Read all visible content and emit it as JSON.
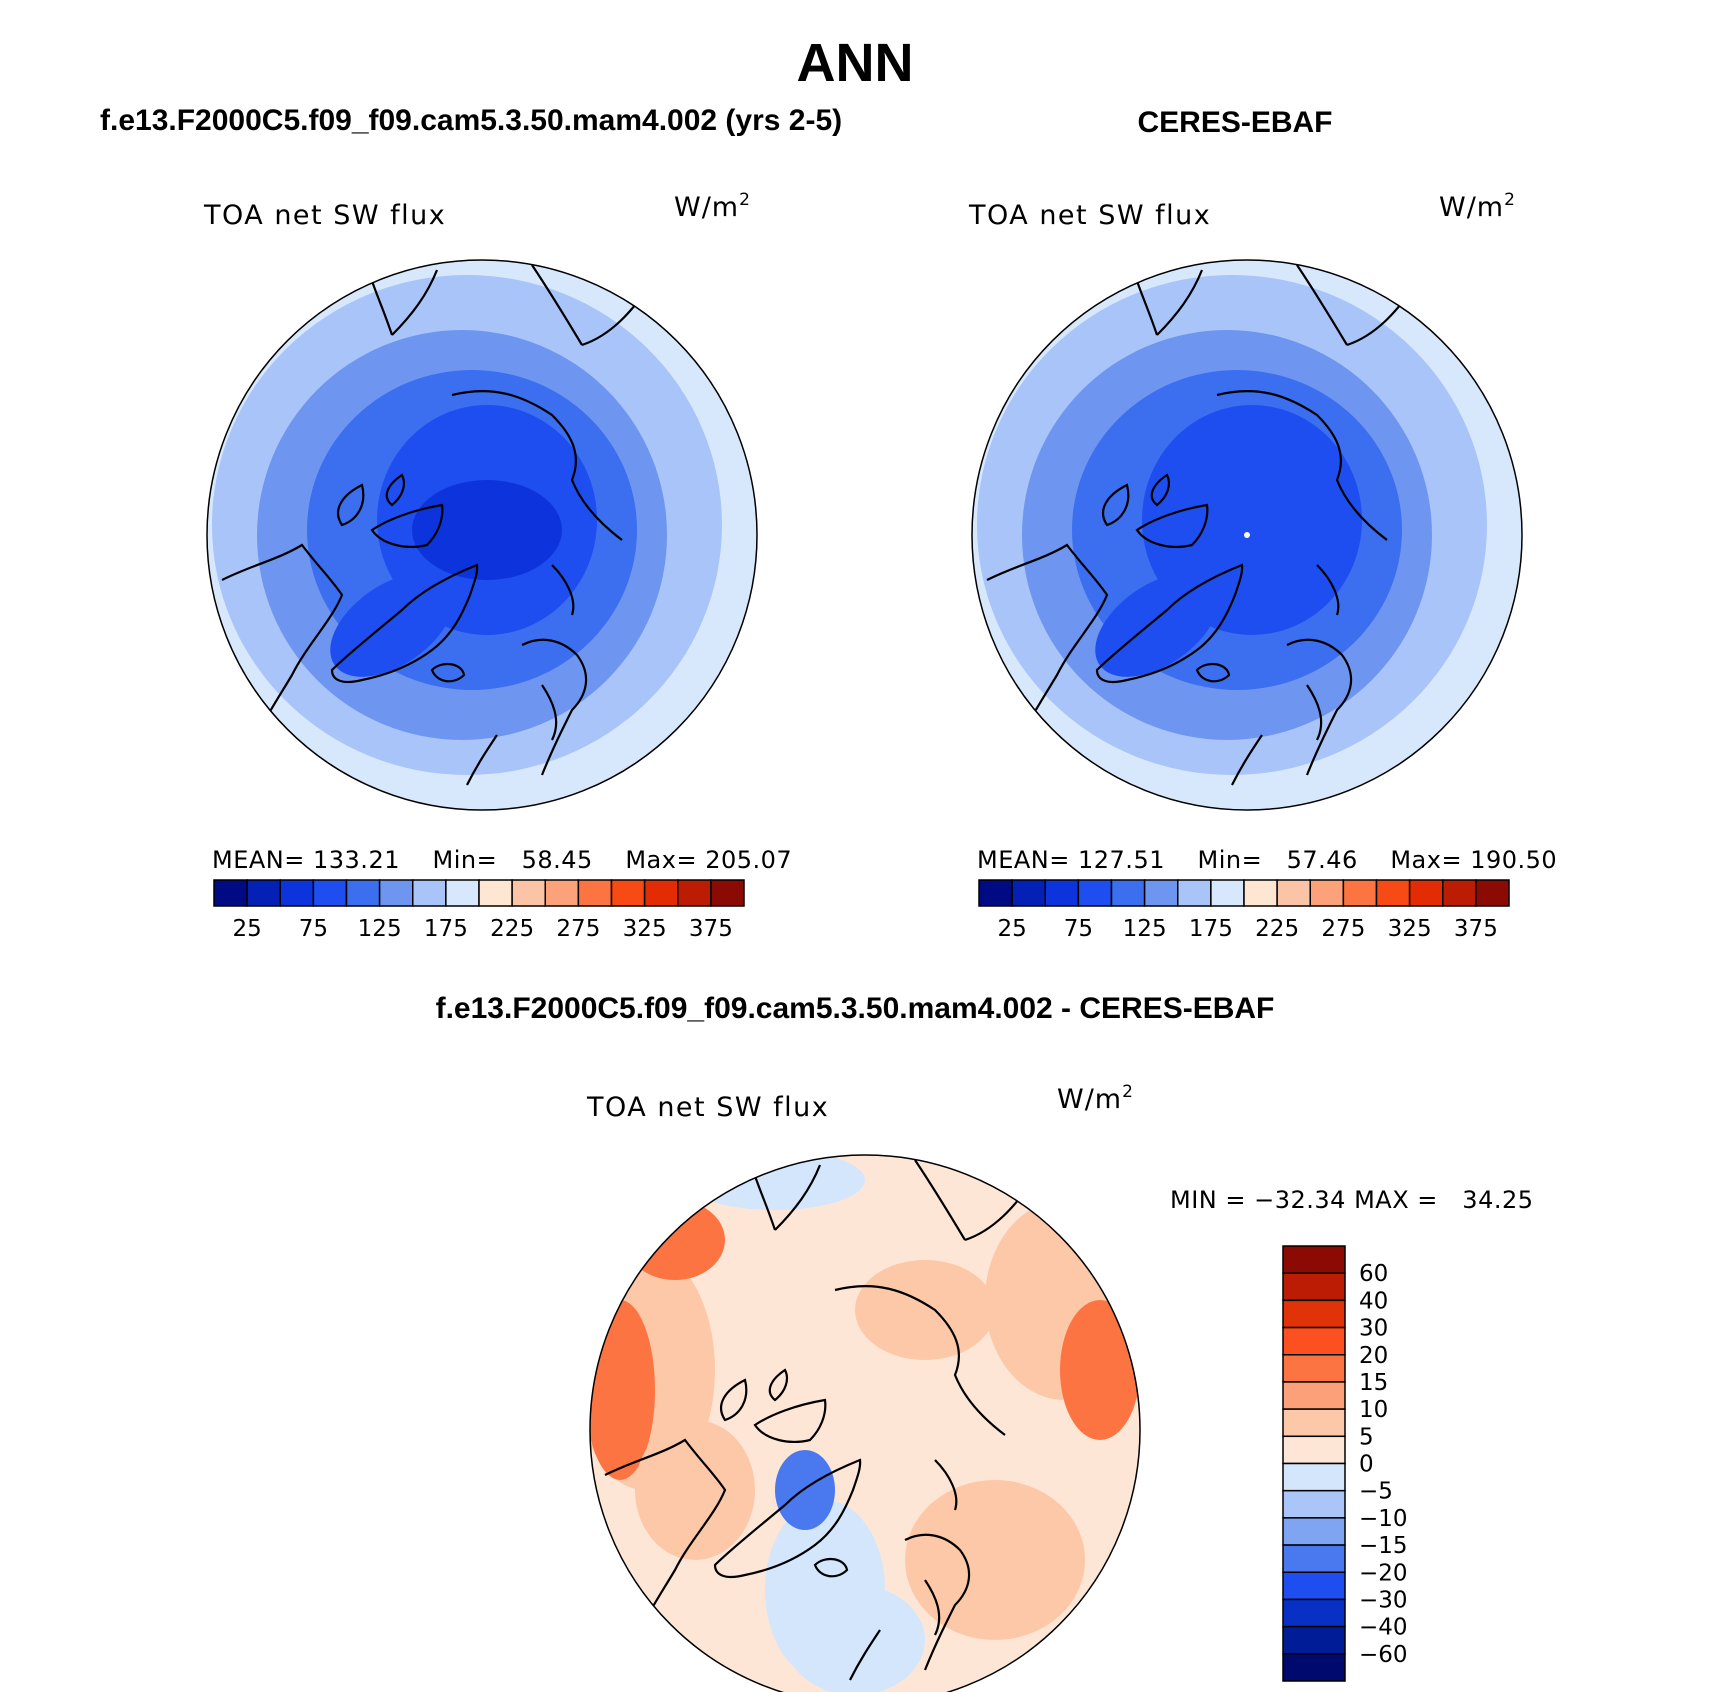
{
  "page": {
    "title": "ANN",
    "panels": [
      {
        "id": "model",
        "header": "f.e13.F2000C5.f09_f09.cam5.3.50.mam4.002 (yrs 2-5)",
        "variable": "TOA net SW flux",
        "units_base": "W/m",
        "units_exp": "2",
        "stats": {
          "mean_label": "MEAN=",
          "mean": "133.21",
          "min_label": "Min=",
          "min": "58.45",
          "max_label": "Max=",
          "max": "205.07"
        }
      },
      {
        "id": "obs",
        "header": "CERES-EBAF",
        "variable": "TOA net SW flux",
        "units_base": "W/m",
        "units_exp": "2",
        "stats": {
          "mean_label": "MEAN=",
          "mean": "127.51",
          "min_label": "Min=",
          "min": "57.46",
          "max_label": "Max=",
          "max": "190.50"
        }
      },
      {
        "id": "diff",
        "header": "f.e13.F2000C5.f09_f09.cam5.3.50.mam4.002 - CERES-EBAF",
        "variable": "TOA net SW flux",
        "units_base": "W/m",
        "units_exp": "2",
        "stats": {
          "min_label": "MIN =",
          "min": "−32.34",
          "max_label": "MAX =",
          "max": "34.25"
        }
      }
    ],
    "colorbar_abs": {
      "tick_labels": [
        "25",
        "75",
        "125",
        "175",
        "225",
        "275",
        "325",
        "375"
      ],
      "colors": [
        "#000a82",
        "#0520b4",
        "#0d34dc",
        "#1e4ef0",
        "#3c6ef0",
        "#6e96f0",
        "#a8c4f8",
        "#d8e8fc",
        "#fde6d2",
        "#fcc4a6",
        "#fca27a",
        "#fc7442",
        "#f84a14",
        "#e42c04",
        "#bc1c04",
        "#8c0a04"
      ]
    },
    "colorbar_diff": {
      "tick_labels": [
        "60",
        "40",
        "30",
        "20",
        "15",
        "10",
        "5",
        "0",
        "−5",
        "−10",
        "−15",
        "−20",
        "−30",
        "−40",
        "−60"
      ],
      "colors": [
        "#8c0a04",
        "#bc1c04",
        "#e03408",
        "#fc5020",
        "#fc7442",
        "#fca07a",
        "#fcc8a8",
        "#fde6d6",
        "#d4e6fc",
        "#aac6f8",
        "#7ea4f2",
        "#4a78ee",
        "#1f4ef0",
        "#0830c4",
        "#001c96",
        "#000a6e"
      ]
    },
    "map_colors": {
      "ocean_outer": "#d8e8fc",
      "ring_1": "#a8c4f8",
      "ring_2": "#6e96f0",
      "ring_3": "#3c6ef0",
      "core": "#1e4ef0",
      "deep": "#0d34dc",
      "diff_base": "#fde6d6",
      "diff_pos": "#fcc8a8",
      "diff_pos_strong": "#fc7442",
      "diff_neg": "#d4e6fc",
      "diff_neg_strong": "#4a78ee"
    }
  }
}
